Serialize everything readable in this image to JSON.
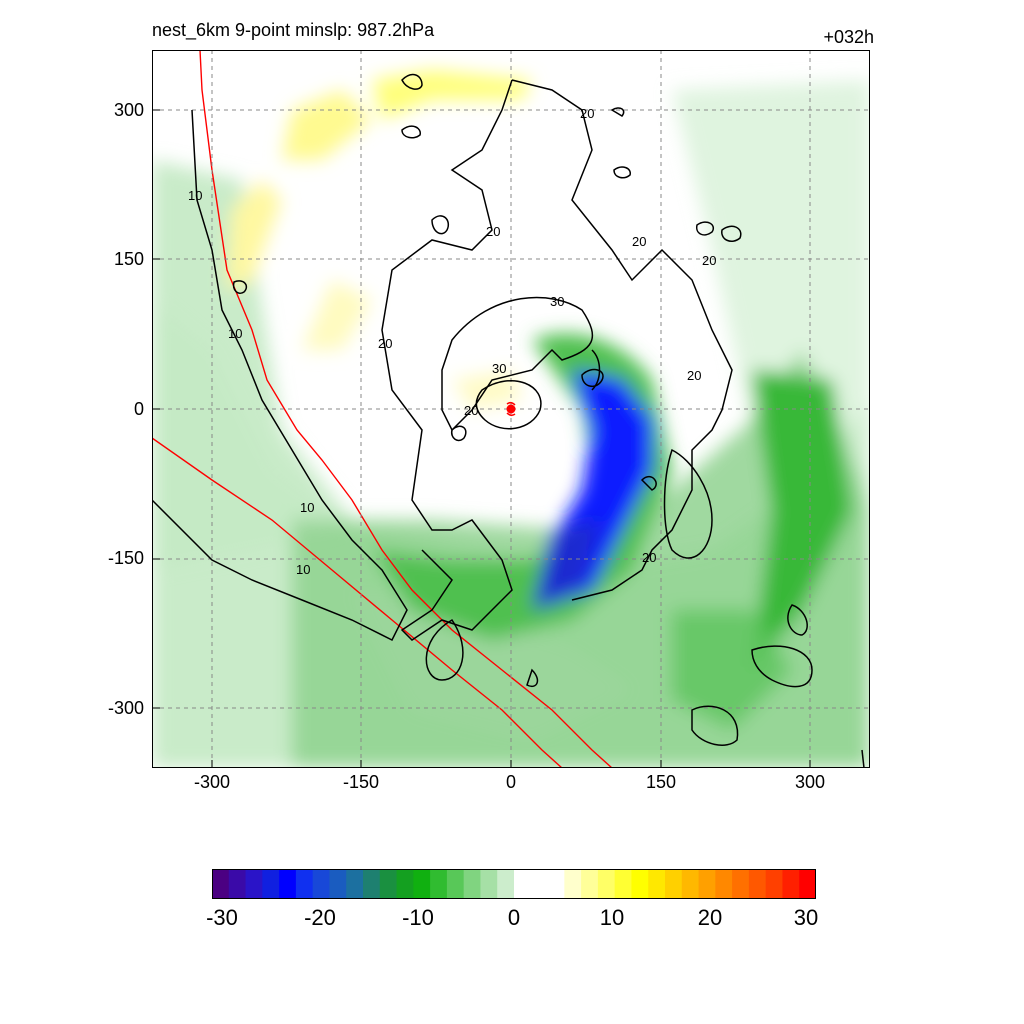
{
  "title": "nest_6km  9-point minslp: 987.2hPa",
  "forecast_hour": "+032h",
  "chart_data": {
    "type": "map",
    "field": "filled contours with line contours",
    "x_ticks": [
      "-300",
      "-150",
      "0",
      "150",
      "300"
    ],
    "y_ticks": [
      "300",
      "150",
      "0",
      "-150",
      "-300"
    ],
    "xlim": [
      -360,
      360
    ],
    "ylim": [
      -360,
      360
    ],
    "grid": true,
    "storm_center": [
      0,
      0
    ],
    "contour_labels": [
      "10",
      "10",
      "10",
      "10",
      "20",
      "20",
      "20",
      "20",
      "20",
      "20",
      "20",
      "20",
      "30",
      "30"
    ],
    "colorbar": {
      "min": -30,
      "max": 30,
      "ticks": [
        "-30",
        "-20",
        "-10",
        "0",
        "10",
        "20",
        "30"
      ],
      "colors": [
        "#4B0082",
        "#3A0AA8",
        "#2A14C8",
        "#1020E0",
        "#0000FF",
        "#1030F0",
        "#1848D8",
        "#1A5CC0",
        "#1C70A0",
        "#1E8070",
        "#1A9040",
        "#14A020",
        "#10B010",
        "#30BC30",
        "#58C858",
        "#80D480",
        "#A6E0A6",
        "#CCEDCC",
        "#FFFFFF",
        "#FFFFFF",
        "#FFFFFF",
        "#FFFFCC",
        "#FFFF99",
        "#FFFF66",
        "#FFFF33",
        "#FFFF00",
        "#FFE800",
        "#FFD000",
        "#FFB800",
        "#FFA000",
        "#FF8800",
        "#FF7000",
        "#FF5800",
        "#FF4000",
        "#FF2000",
        "#FF0000"
      ]
    }
  }
}
